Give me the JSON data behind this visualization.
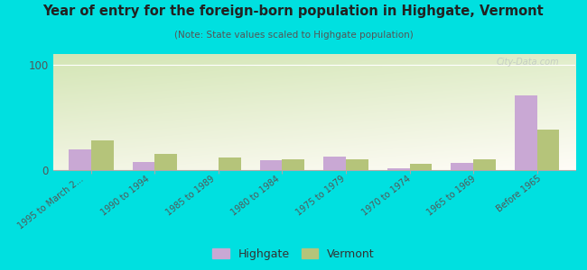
{
  "title": "Year of entry for the foreign-born population in Highgate, Vermont",
  "subtitle": "(Note: State values scaled to Highgate population)",
  "categories": [
    "1995 to March 2...",
    "1990 to 1994",
    "1985 to 1989",
    "1980 to 1984",
    "1975 to 1979",
    "1970 to 1974",
    "1965 to 1969",
    "Before 1965"
  ],
  "highgate_values": [
    20,
    8,
    0,
    9,
    13,
    2,
    7,
    71
  ],
  "vermont_values": [
    28,
    15,
    12,
    10,
    10,
    6,
    10,
    38
  ],
  "highgate_color": "#c9a8d4",
  "vermont_color": "#b5c47a",
  "ylim": [
    0,
    110
  ],
  "yticks": [
    0,
    100
  ],
  "background_color": "#00e0e0",
  "watermark": "City-Data.com",
  "bar_width": 0.35
}
